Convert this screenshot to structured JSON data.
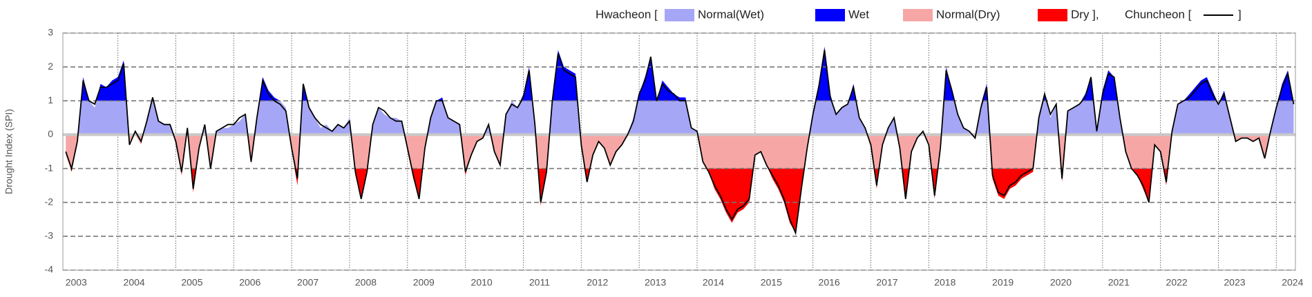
{
  "chart_data": {
    "type": "area-line",
    "y_label": "Drought Index (SPI)",
    "ylim": [
      -4,
      3
    ],
    "yticks": [
      -4,
      -3,
      -2,
      -1,
      0,
      1,
      2,
      3
    ],
    "xlim": [
      2003.05,
      2024.33
    ],
    "xticks": [
      2003,
      2004,
      2005,
      2006,
      2007,
      2008,
      2009,
      2010,
      2011,
      2012,
      2013,
      2014,
      2015,
      2016,
      2017,
      2018,
      2019,
      2020,
      2021,
      2022,
      2023,
      2024
    ],
    "grid": true,
    "x": [
      2003.1,
      2003.2,
      2003.3,
      2003.4,
      2003.5,
      2003.6,
      2003.7,
      2003.8,
      2003.9,
      2004.0,
      2004.1,
      2004.2,
      2004.3,
      2004.4,
      2004.5,
      2004.6,
      2004.7,
      2004.8,
      2004.9,
      2005.0,
      2005.1,
      2005.2,
      2005.3,
      2005.4,
      2005.5,
      2005.6,
      2005.7,
      2005.8,
      2005.9,
      2006.0,
      2006.1,
      2006.2,
      2006.3,
      2006.4,
      2006.5,
      2006.6,
      2006.7,
      2006.8,
      2006.9,
      2007.0,
      2007.1,
      2007.2,
      2007.3,
      2007.4,
      2007.5,
      2007.6,
      2007.7,
      2007.8,
      2007.9,
      2008.0,
      2008.1,
      2008.2,
      2008.3,
      2008.4,
      2008.5,
      2008.6,
      2008.7,
      2008.8,
      2008.9,
      2009.0,
      2009.1,
      2009.2,
      2009.3,
      2009.4,
      2009.5,
      2009.6,
      2009.7,
      2009.8,
      2009.9,
      2010.0,
      2010.1,
      2010.2,
      2010.3,
      2010.4,
      2010.5,
      2010.6,
      2010.7,
      2010.8,
      2010.9,
      2011.0,
      2011.1,
      2011.2,
      2011.3,
      2011.4,
      2011.5,
      2011.6,
      2011.7,
      2011.8,
      2011.9,
      2012.0,
      2012.1,
      2012.2,
      2012.3,
      2012.4,
      2012.5,
      2012.6,
      2012.7,
      2012.8,
      2012.9,
      2013.0,
      2013.1,
      2013.2,
      2013.3,
      2013.4,
      2013.5,
      2013.6,
      2013.7,
      2013.8,
      2013.9,
      2014.0,
      2014.1,
      2014.2,
      2014.3,
      2014.4,
      2014.5,
      2014.6,
      2014.7,
      2014.8,
      2014.9,
      2015.0,
      2015.1,
      2015.2,
      2015.3,
      2015.4,
      2015.5,
      2015.6,
      2015.7,
      2015.8,
      2015.9,
      2016.0,
      2016.1,
      2016.2,
      2016.3,
      2016.4,
      2016.5,
      2016.6,
      2016.7,
      2016.8,
      2016.9,
      2017.0,
      2017.1,
      2017.2,
      2017.3,
      2017.4,
      2017.5,
      2017.6,
      2017.7,
      2017.8,
      2017.9,
      2018.0,
      2018.1,
      2018.2,
      2018.3,
      2018.4,
      2018.5,
      2018.6,
      2018.7,
      2018.8,
      2018.9,
      2019.0,
      2019.1,
      2019.2,
      2019.3,
      2019.4,
      2019.5,
      2019.6,
      2019.7,
      2019.8,
      2019.9,
      2020.0,
      2020.1,
      2020.2,
      2020.3,
      2020.4,
      2020.5,
      2020.6,
      2020.7,
      2020.8,
      2020.9,
      2021.0,
      2021.1,
      2021.2,
      2021.3,
      2021.4,
      2021.5,
      2021.6,
      2021.7,
      2021.8,
      2021.9,
      2022.0,
      2022.1,
      2022.2,
      2022.3,
      2022.4,
      2022.5,
      2022.6,
      2022.7,
      2022.8,
      2022.9,
      2023.0,
      2023.1,
      2023.2,
      2023.3,
      2023.4,
      2023.5,
      2023.6,
      2023.7,
      2023.8,
      2023.9,
      2024.0,
      2024.1,
      2024.2,
      2024.3
    ],
    "series": [
      {
        "name": "Hwacheon [",
        "fills": [
          {
            "name": "Normal(Wet)",
            "color": "#a6a6f7"
          },
          {
            "name": "Wet",
            "color": "#0000ff"
          },
          {
            "name": "Normal(Dry)",
            "color": "#f7a6a6"
          },
          {
            "name": "Dry ],",
            "color": "#ff0000"
          }
        ],
        "values": [
          -0.6,
          -1.1,
          -0.3,
          1.7,
          1.0,
          0.8,
          1.5,
          1.4,
          1.6,
          1.7,
          2.2,
          -0.2,
          0.0,
          -0.3,
          0.5,
          1.1,
          0.4,
          0.3,
          0.3,
          -0.3,
          -1.2,
          0.2,
          -1.7,
          -0.4,
          0.2,
          -1.0,
          0.1,
          0.2,
          0.2,
          0.3,
          0.4,
          0.6,
          -0.9,
          0.5,
          1.7,
          1.3,
          1.1,
          1.0,
          0.8,
          -0.5,
          -1.5,
          1.5,
          0.8,
          0.5,
          0.2,
          0.3,
          0.1,
          0.3,
          0.2,
          0.5,
          -1.2,
          -1.9,
          -1.0,
          0.3,
          0.8,
          0.6,
          0.5,
          0.5,
          0.4,
          -0.5,
          -1.3,
          -1.9,
          -0.5,
          0.5,
          1.0,
          1.1,
          0.5,
          0.4,
          0.3,
          -1.2,
          -0.6,
          -0.2,
          -0.1,
          0.3,
          -0.5,
          -0.9,
          0.6,
          1.0,
          0.8,
          1.2,
          2.0,
          0.2,
          -2.1,
          -1.1,
          1.0,
          2.5,
          2.0,
          1.9,
          1.8,
          -0.3,
          -1.4,
          -0.6,
          -0.2,
          -0.4,
          -0.9,
          -0.5,
          -0.3,
          0.0,
          0.5,
          1.2,
          1.7,
          2.3,
          1.0,
          1.6,
          1.4,
          1.2,
          1.1,
          1.1,
          0.2,
          0.1,
          -0.8,
          -1.1,
          -1.6,
          -1.9,
          -2.3,
          -2.6,
          -2.3,
          -2.2,
          -2.0,
          -0.6,
          -0.5,
          -0.9,
          -1.3,
          -1.6,
          -2.0,
          -2.6,
          -2.9,
          -1.5,
          -0.3,
          0.7,
          1.5,
          2.6,
          1.2,
          0.6,
          0.8,
          0.9,
          1.5,
          0.5,
          0.2,
          -0.4,
          -1.6,
          -0.3,
          0.2,
          0.5,
          -0.4,
          -1.9,
          -0.5,
          -0.1,
          0.1,
          -0.3,
          -1.9,
          -0.4,
          2.0,
          1.3,
          0.6,
          0.2,
          0.1,
          -0.1,
          0.9,
          1.5,
          -1.3,
          -1.8,
          -1.9,
          -1.6,
          -1.5,
          -1.3,
          -1.2,
          -1.1,
          0.6,
          1.2,
          0.5,
          0.9,
          -1.4,
          0.7,
          0.8,
          0.9,
          1.2,
          1.7,
          0.1,
          1.3,
          1.9,
          1.7,
          0.5,
          -0.5,
          -1.0,
          -1.2,
          -1.6,
          -2.0,
          -0.3,
          -0.5,
          -1.5,
          0.1,
          0.9,
          1.0,
          1.2,
          1.4,
          1.6,
          1.7,
          1.3,
          0.9,
          1.3,
          0.5,
          -0.2,
          -0.1,
          -0.1,
          -0.2,
          -0.1,
          -0.7,
          0.1,
          0.8,
          1.5,
          1.9,
          0.9
        ]
      },
      {
        "name": "Chuncheon [",
        "color": "#000000",
        "values": [
          -0.5,
          -1.0,
          -0.2,
          1.6,
          1.0,
          0.9,
          1.4,
          1.4,
          1.5,
          1.6,
          2.1,
          -0.3,
          0.1,
          -0.2,
          0.4,
          1.1,
          0.4,
          0.3,
          0.3,
          -0.2,
          -1.1,
          0.2,
          -1.6,
          -0.4,
          0.3,
          -1.0,
          0.1,
          0.2,
          0.3,
          0.3,
          0.5,
          0.6,
          -0.8,
          0.5,
          1.6,
          1.2,
          1.0,
          0.9,
          0.7,
          -0.4,
          -1.3,
          1.5,
          0.8,
          0.5,
          0.3,
          0.2,
          0.1,
          0.3,
          0.2,
          0.4,
          -1.1,
          -1.9,
          -1.1,
          0.3,
          0.8,
          0.7,
          0.5,
          0.4,
          0.4,
          -0.4,
          -1.2,
          -1.9,
          -0.4,
          0.5,
          1.0,
          1.0,
          0.5,
          0.4,
          0.3,
          -1.1,
          -0.6,
          -0.2,
          -0.1,
          0.3,
          -0.5,
          -0.9,
          0.6,
          0.9,
          0.8,
          1.1,
          1.9,
          0.3,
          -2.0,
          -1.1,
          1.0,
          2.4,
          1.9,
          1.8,
          1.7,
          -0.3,
          -1.4,
          -0.6,
          -0.2,
          -0.4,
          -0.9,
          -0.5,
          -0.3,
          0.0,
          0.4,
          1.2,
          1.6,
          2.3,
          1.0,
          1.5,
          1.3,
          1.2,
          1.0,
          1.0,
          0.2,
          0.1,
          -0.8,
          -1.1,
          -1.5,
          -1.8,
          -2.2,
          -2.5,
          -2.2,
          -2.1,
          -1.9,
          -0.6,
          -0.5,
          -0.9,
          -1.2,
          -1.5,
          -1.9,
          -2.5,
          -2.9,
          -1.6,
          -0.4,
          0.6,
          1.4,
          2.5,
          1.1,
          0.6,
          0.8,
          0.9,
          1.4,
          0.5,
          0.2,
          -0.3,
          -1.5,
          -0.3,
          0.2,
          0.5,
          -0.4,
          -1.9,
          -0.5,
          -0.1,
          0.1,
          -0.3,
          -1.8,
          -0.4,
          1.9,
          1.3,
          0.6,
          0.2,
          0.1,
          -0.1,
          0.8,
          1.4,
          -1.2,
          -1.7,
          -1.8,
          -1.5,
          -1.4,
          -1.2,
          -1.1,
          -1.0,
          0.5,
          1.2,
          0.6,
          0.9,
          -1.3,
          0.7,
          0.8,
          0.9,
          1.1,
          1.7,
          0.1,
          1.2,
          1.8,
          1.7,
          0.5,
          -0.5,
          -1.0,
          -1.2,
          -1.5,
          -2.0,
          -0.3,
          -0.5,
          -1.4,
          0.1,
          0.9,
          1.0,
          1.1,
          1.3,
          1.5,
          1.6,
          1.2,
          0.9,
          1.2,
          0.5,
          -0.2,
          -0.1,
          -0.1,
          -0.2,
          -0.1,
          -0.7,
          0.1,
          0.8,
          1.4,
          1.8,
          0.9
        ]
      }
    ],
    "legend_close": "]"
  }
}
